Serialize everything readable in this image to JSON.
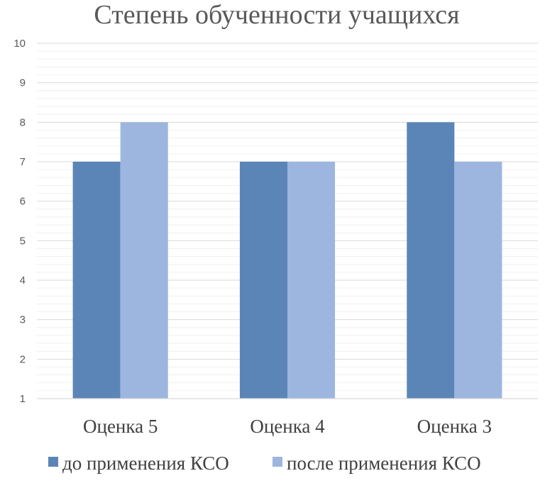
{
  "chart_data": {
    "type": "bar",
    "title": "Степень обученности учащихся",
    "xlabel": "",
    "ylabel": "",
    "categories": [
      "Оценка 5",
      "Оценка 4",
      "Оценка 3"
    ],
    "series": [
      {
        "name": "до применения КСО",
        "values": [
          7,
          7,
          8
        ],
        "color": "#5b85b7"
      },
      {
        "name": "после применения КСО",
        "values": [
          8,
          7,
          7
        ],
        "color": "#9db6df"
      }
    ],
    "ylim": [
      1,
      10
    ],
    "yticks": [
      "1",
      "2",
      "3",
      "4",
      "5",
      "6",
      "7",
      "8",
      "9",
      "10"
    ],
    "grid": true,
    "legend": "bottom"
  }
}
